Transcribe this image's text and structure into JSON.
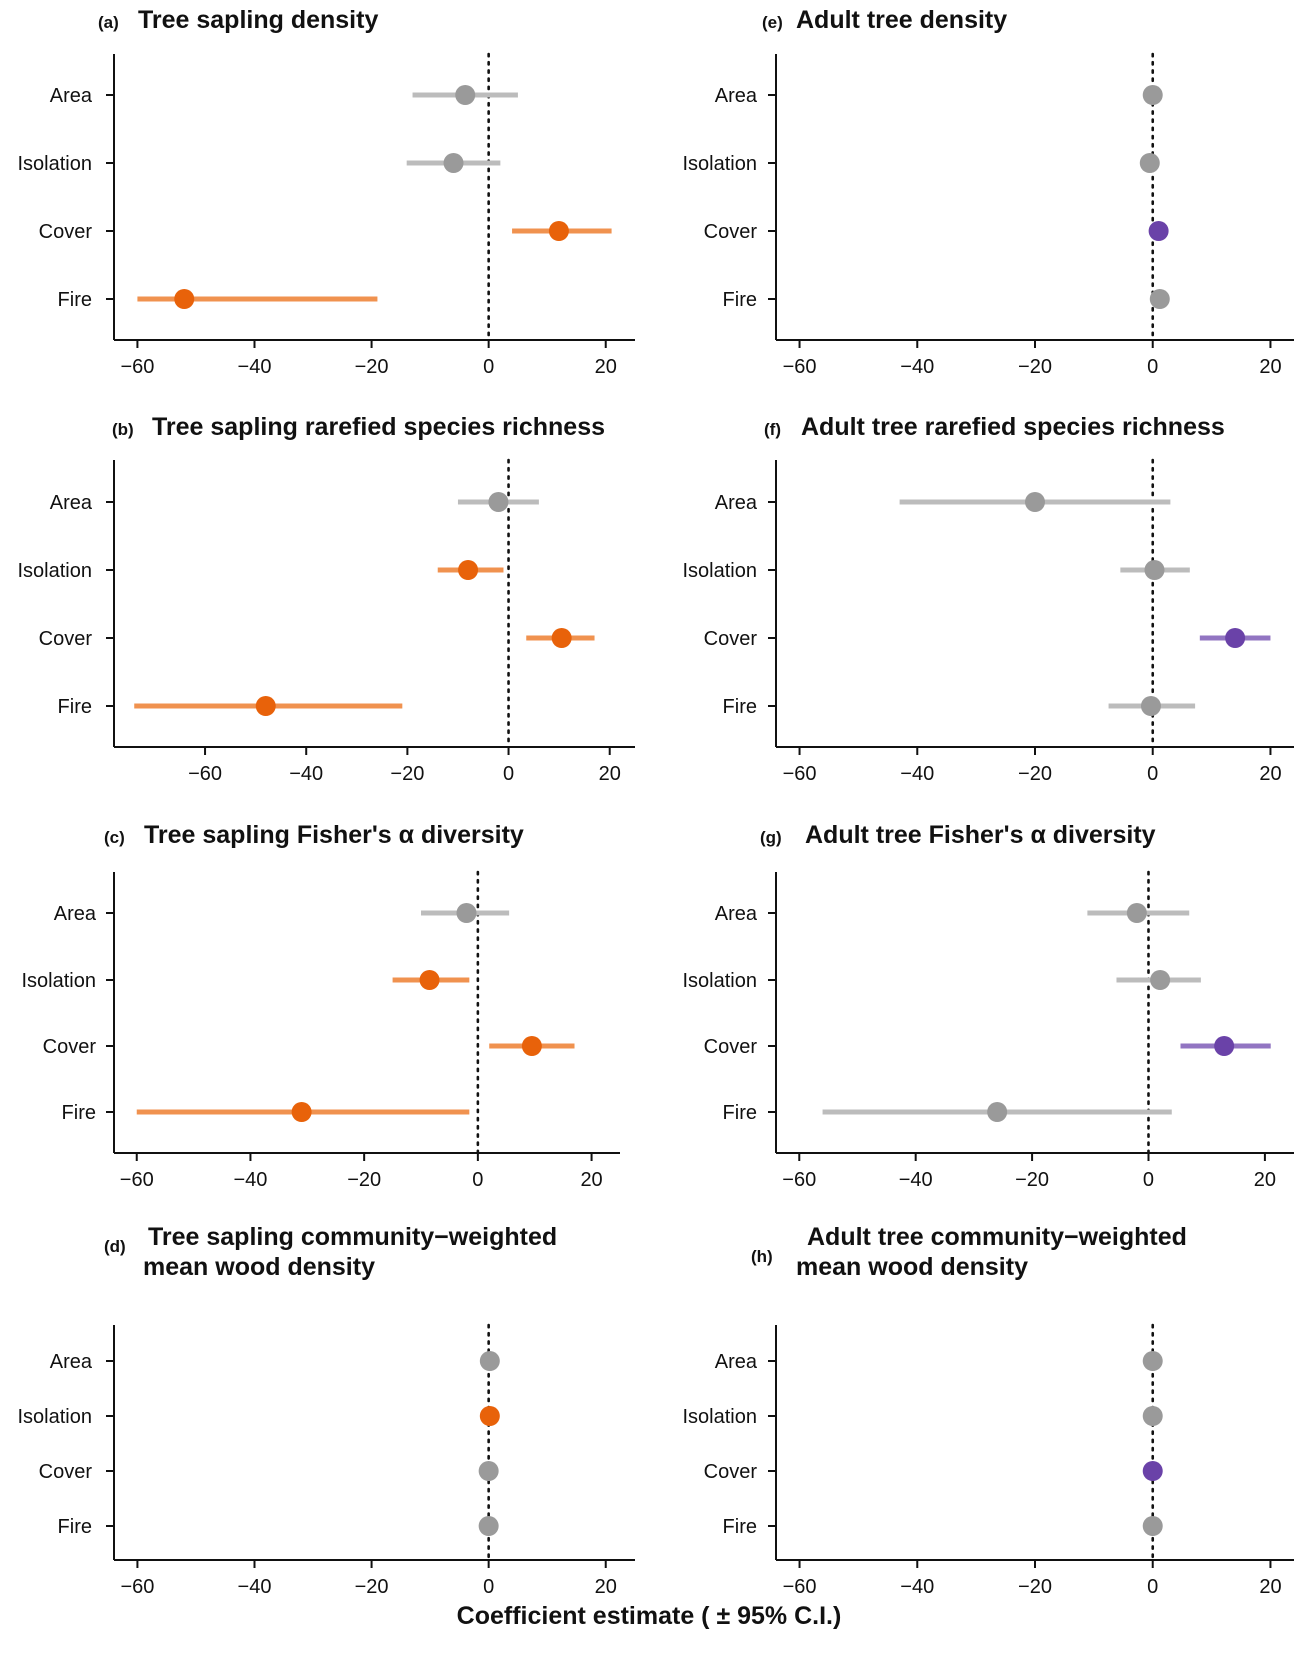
{
  "x_axis_title": "Coefficient estimate ( ± 95% C.I.)",
  "colors": {
    "not_significant": "#9a9a9a",
    "not_significant_ci": "#bcbcbc",
    "sapling_significant": "#e8620a",
    "sapling_significant_ci": "#f0924f",
    "adult_significant": "#6a42a8",
    "adult_significant_ci": "#9275c2"
  },
  "chart_data": [
    {
      "panel": "a",
      "letter": "(a)",
      "title_lines": [
        "Tree sapling density"
      ],
      "type": "dot-whisker",
      "categories": [
        "Area",
        "Isolation",
        "Cover",
        "Fire"
      ],
      "estimate": [
        -4,
        -6,
        12,
        -52
      ],
      "ci_low": [
        -13,
        -14,
        4,
        -60
      ],
      "ci_high": [
        5,
        2,
        21,
        -19
      ],
      "significant": [
        false,
        false,
        true,
        true
      ],
      "group": "sapling",
      "xlim": [
        -64,
        25
      ],
      "xticks": [
        -60,
        -40,
        -20,
        0,
        20
      ],
      "reference_line": 0
    },
    {
      "panel": "b",
      "letter": "(b)",
      "title_lines": [
        "Tree sapling rarefied species richness"
      ],
      "type": "dot-whisker",
      "categories": [
        "Area",
        "Isolation",
        "Cover",
        "Fire"
      ],
      "estimate": [
        -2,
        -8,
        10.5,
        -48
      ],
      "ci_low": [
        -10,
        -14,
        3.5,
        -74
      ],
      "ci_high": [
        6,
        -1,
        17,
        -21
      ],
      "significant": [
        false,
        true,
        true,
        true
      ],
      "group": "sapling",
      "xlim": [
        -78,
        25
      ],
      "xticks": [
        -60,
        -40,
        -20,
        0,
        20
      ],
      "reference_line": 0
    },
    {
      "panel": "c",
      "letter": "(c)",
      "title_lines": [
        "Tree sapling Fisher's α diversity"
      ],
      "type": "dot-whisker",
      "categories": [
        "Area",
        "Isolation",
        "Cover",
        "Fire"
      ],
      "estimate": [
        -2,
        -8.5,
        9.5,
        -31
      ],
      "ci_low": [
        -10,
        -15,
        2,
        -60
      ],
      "ci_high": [
        5.5,
        -1.5,
        17,
        -1.5
      ],
      "significant": [
        false,
        true,
        true,
        true
      ],
      "group": "sapling",
      "xlim": [
        -64,
        25
      ],
      "xticks": [
        -60,
        -40,
        -20,
        0,
        20
      ],
      "reference_line": 0
    },
    {
      "panel": "d",
      "letter": "(d)",
      "title_lines": [
        "Tree sapling community−weighted",
        "mean wood density"
      ],
      "type": "dot-whisker",
      "categories": [
        "Area",
        "Isolation",
        "Cover",
        "Fire"
      ],
      "estimate": [
        0.2,
        0.2,
        0,
        0
      ],
      "ci_low": [
        0.2,
        0.2,
        0,
        0
      ],
      "ci_high": [
        0.2,
        0.2,
        0,
        0
      ],
      "significant": [
        false,
        true,
        false,
        false
      ],
      "group": "sapling",
      "xlim": [
        -64,
        25
      ],
      "xticks": [
        -60,
        -40,
        -20,
        0,
        20
      ],
      "reference_line": 0
    },
    {
      "panel": "e",
      "letter": "(e)",
      "title_lines": [
        "Adult tree density"
      ],
      "type": "dot-whisker",
      "categories": [
        "Area",
        "Isolation",
        "Cover",
        "Fire"
      ],
      "estimate": [
        0,
        -0.5,
        1,
        1.2
      ],
      "ci_low": [
        0,
        -0.5,
        1,
        1.2
      ],
      "ci_high": [
        0,
        -0.5,
        1,
        1.2
      ],
      "significant": [
        false,
        false,
        true,
        false
      ],
      "group": "adult",
      "xlim": [
        -64,
        24
      ],
      "xticks": [
        -60,
        -40,
        -20,
        0,
        20
      ],
      "reference_line": 0
    },
    {
      "panel": "f",
      "letter": "(f)",
      "title_lines": [
        "Adult tree rarefied species richness"
      ],
      "type": "dot-whisker",
      "categories": [
        "Area",
        "Isolation",
        "Cover",
        "Fire"
      ],
      "estimate": [
        -20,
        0.3,
        14,
        -0.3
      ],
      "ci_low": [
        -43,
        -5.5,
        8,
        -7.5
      ],
      "ci_high": [
        3,
        6.3,
        20,
        7.2
      ],
      "significant": [
        false,
        false,
        true,
        false
      ],
      "group": "adult",
      "xlim": [
        -64,
        24
      ],
      "xticks": [
        -60,
        -40,
        -20,
        0,
        20
      ],
      "reference_line": 0
    },
    {
      "panel": "g",
      "letter": "(g)",
      "title_lines": [
        "Adult tree Fisher's α diversity"
      ],
      "type": "dot-whisker",
      "categories": [
        "Area",
        "Isolation",
        "Cover",
        "Fire"
      ],
      "estimate": [
        -2,
        2,
        13,
        -26
      ],
      "ci_low": [
        -10.5,
        -5.5,
        5.5,
        -56
      ],
      "ci_high": [
        7,
        9,
        21,
        4
      ],
      "significant": [
        false,
        false,
        true,
        false
      ],
      "group": "adult",
      "xlim": [
        -64,
        25
      ],
      "xticks": [
        -60,
        -40,
        -20,
        0,
        20
      ],
      "reference_line": 0
    },
    {
      "panel": "h",
      "letter": "(h)",
      "title_lines": [
        "Adult tree community−weighted",
        "mean wood density"
      ],
      "type": "dot-whisker",
      "categories": [
        "Area",
        "Isolation",
        "Cover",
        "Fire"
      ],
      "estimate": [
        0,
        0,
        0,
        0
      ],
      "ci_low": [
        0,
        0,
        0,
        0
      ],
      "ci_high": [
        0,
        0,
        0,
        0
      ],
      "significant": [
        false,
        false,
        true,
        false
      ],
      "group": "adult",
      "xlim": [
        -64,
        24
      ],
      "xticks": [
        -60,
        -40,
        -20,
        0,
        20
      ],
      "reference_line": 0
    }
  ]
}
